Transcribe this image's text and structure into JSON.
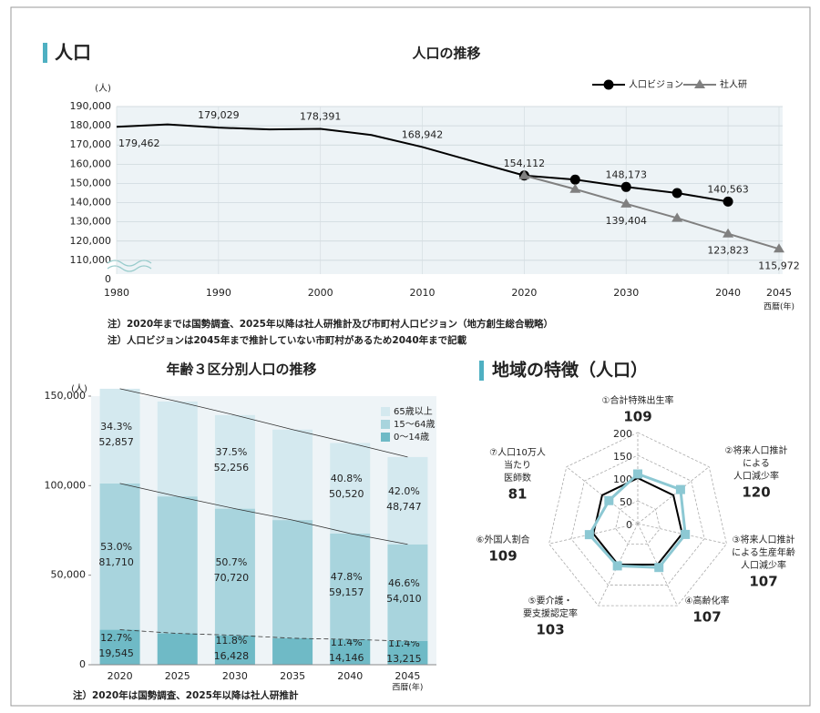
{
  "header": {
    "title": "人口"
  },
  "chart_data": [
    {
      "type": "line",
      "title": "人口の推移",
      "y_label": "(人)",
      "x_label": "西暦(年)",
      "x": [
        1980,
        1985,
        1990,
        1995,
        2000,
        2005,
        2010,
        2015,
        2020,
        2025,
        2030,
        2035,
        2040,
        2045
      ],
      "series": [
        {
          "name": "人口ビジョン",
          "color": "#000000",
          "marker": "circle",
          "markers_from": 2020,
          "values": [
            179462,
            180700,
            179029,
            178100,
            178391,
            175200,
            168942,
            161500,
            154112,
            152000,
            148173,
            145000,
            140563,
            null
          ],
          "value_labels": [
            "179,462",
            null,
            "179,029",
            null,
            "178,391",
            null,
            "168,942",
            null,
            "154,112",
            null,
            "148,173",
            null,
            "140,563",
            null
          ]
        },
        {
          "name": "社人研",
          "color": "#808080",
          "marker": "triangle",
          "markers_from": 2020,
          "values": [
            null,
            null,
            null,
            null,
            null,
            null,
            null,
            null,
            154112,
            147000,
            139404,
            132000,
            123823,
            115972
          ],
          "value_labels": [
            null,
            null,
            null,
            null,
            null,
            null,
            null,
            null,
            null,
            null,
            "139,404",
            null,
            "123,823",
            "115,972"
          ]
        }
      ],
      "xlim": [
        1980,
        2045
      ],
      "xticks": [
        1980,
        1990,
        2000,
        2010,
        2020,
        2030,
        2040,
        2045
      ],
      "ylim": [
        100000,
        190000
      ],
      "axis_break": true,
      "yticks": [
        0,
        {
          "value": 110000,
          "label": "110,000"
        },
        {
          "value": 120000,
          "label": "120,000"
        },
        {
          "value": 130000,
          "label": "130,000"
        },
        {
          "value": 140000,
          "label": "140,000"
        },
        {
          "value": 150000,
          "label": "150,000"
        },
        {
          "value": 160000,
          "label": "160,000"
        },
        {
          "value": 170000,
          "label": "170,000"
        },
        {
          "value": 180000,
          "label": "180,000"
        },
        {
          "value": 190000,
          "label": "190,000"
        }
      ],
      "grid": true,
      "legend": "top-right",
      "notes": [
        "注）2020年までは国勢調査、2025年以降は社人研推計及び市町村人口ビジョン（地方創生総合戦略）",
        "注）人口ビジョンは2045年まで推計していない市町村があるため2040年まで記載"
      ]
    },
    {
      "type": "stacked_bar",
      "title": "年齢３区分別人口の推移",
      "y_label": "(人)",
      "x_label": "西暦(年)",
      "categories": [
        "2020",
        "2025",
        "2030",
        "2035",
        "2040",
        "2045"
      ],
      "series": [
        {
          "name": "0～14歳",
          "color": "#6fbac6",
          "values": [
            19545,
            17500,
            16428,
            14800,
            14146,
            13215
          ],
          "value_labels": [
            "19,545",
            null,
            "16,428",
            null,
            "14,146",
            "13,215"
          ],
          "shares": [
            12.7,
            null,
            11.8,
            null,
            11.4,
            11.4
          ],
          "share_labels": [
            "12.7%",
            null,
            "11.8%",
            null,
            "11.4%",
            "11.4%"
          ]
        },
        {
          "name": "15～64歳",
          "color": "#a8d4dd",
          "values": [
            81710,
            76500,
            70720,
            66000,
            59157,
            54010
          ],
          "value_labels": [
            "81,710",
            null,
            "70,720",
            null,
            "59,157",
            "54,010"
          ],
          "shares": [
            53.0,
            null,
            50.7,
            null,
            47.8,
            46.6
          ],
          "share_labels": [
            "53.0%",
            null,
            "50.7%",
            null,
            "47.8%",
            "46.6%"
          ]
        },
        {
          "name": "65歳以上",
          "color": "#d4e9ef",
          "values": [
            52857,
            53000,
            52256,
            50500,
            50520,
            48747
          ],
          "value_labels": [
            "52,857",
            null,
            "52,256",
            null,
            "50,520",
            "48,747"
          ],
          "shares": [
            34.3,
            null,
            37.5,
            null,
            40.8,
            42.0
          ],
          "share_labels": [
            "34.3%",
            null,
            "37.5%",
            null,
            "40.8%",
            "42.0%"
          ]
        }
      ],
      "ylim": [
        0,
        150000
      ],
      "yticks": [
        0,
        {
          "value": 50000,
          "label": "50,000"
        },
        {
          "value": 100000,
          "label": "100,000"
        },
        {
          "value": 150000,
          "label": "150,000"
        }
      ],
      "legend": "top-right",
      "notes": [
        "注）2020年は国勢調査、2025年以降は社人研推計"
      ]
    },
    {
      "type": "radar",
      "title": "地域の特徴（人口）",
      "categories": [
        [
          "①合計特殊出生率"
        ],
        [
          "②将来人口推計",
          "による",
          "人口減少率"
        ],
        [
          "③将来人口推計",
          "による生産年齢",
          "人口減少率"
        ],
        [
          "④高齢化率"
        ],
        [
          "⑤要介護・",
          "要支援認定率"
        ],
        [
          "⑥外国人割合"
        ],
        [
          "⑦人口10万人",
          "当たり",
          "医師数"
        ]
      ],
      "series": [
        {
          "color": "#000000",
          "values": [
            100,
            100,
            100,
            100,
            100,
            100,
            100
          ]
        },
        {
          "color": "#8cc8d3",
          "values": [
            109,
            120,
            107,
            107,
            103,
            109,
            81
          ]
        }
      ],
      "rlim": [
        0,
        200
      ],
      "rticks": [
        0,
        50,
        100,
        150,
        200
      ]
    }
  ]
}
